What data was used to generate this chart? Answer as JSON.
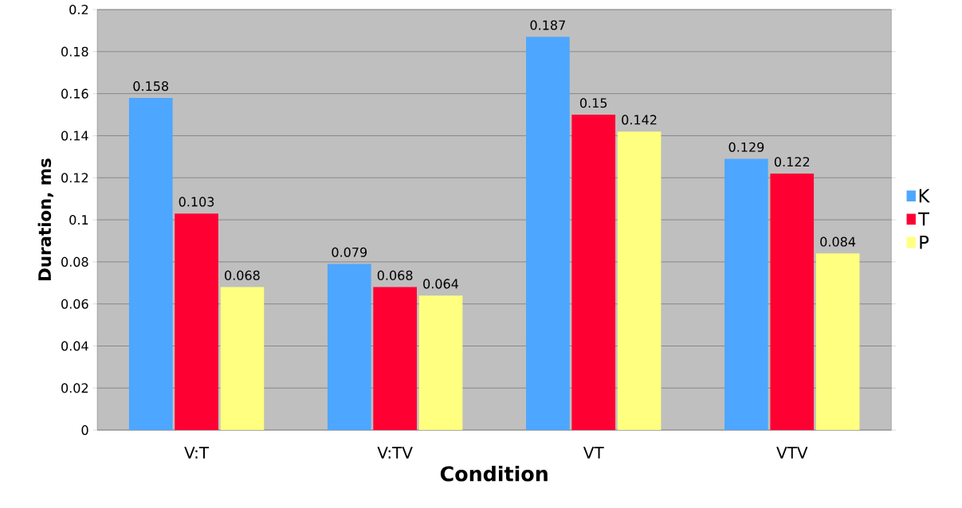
{
  "chart_data": {
    "type": "bar",
    "xlabel": "Condition",
    "ylabel": "Duration, ms",
    "categories": [
      "V:T",
      "V:TV",
      "VT",
      "VTV"
    ],
    "series": [
      {
        "name": "K",
        "color": "#4da6ff",
        "values": [
          0.158,
          0.079,
          0.187,
          0.129
        ]
      },
      {
        "name": "T",
        "color": "#ff0033",
        "values": [
          0.103,
          0.068,
          0.15,
          0.122
        ]
      },
      {
        "name": "P",
        "color": "#ffff80",
        "values": [
          0.068,
          0.064,
          0.142,
          0.084
        ]
      }
    ],
    "ylim": [
      0,
      0.2
    ],
    "yticks": [
      0,
      0.02,
      0.04,
      0.06,
      0.08,
      0.1,
      0.12,
      0.14,
      0.16,
      0.18,
      0.2
    ],
    "grid": "y",
    "legend": "right",
    "data_labels": true
  }
}
